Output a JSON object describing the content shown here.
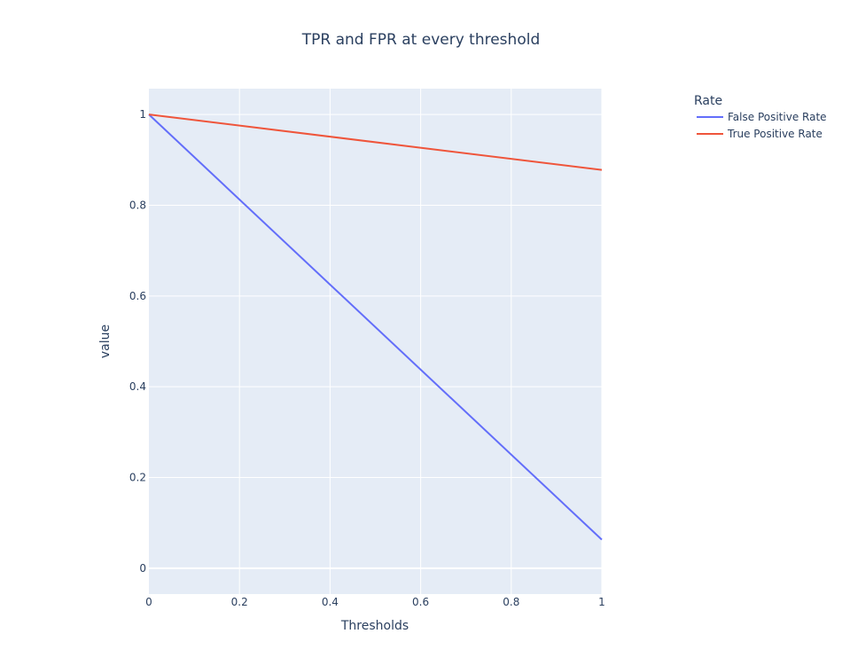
{
  "chart_data": {
    "type": "line",
    "title": "TPR and FPR at every threshold",
    "xlabel": "Thresholds",
    "ylabel": "value",
    "xlim": [
      0,
      1
    ],
    "ylim": [
      -0.057,
      1.057
    ],
    "x_ticks": [
      "0",
      "0.2",
      "0.4",
      "0.6",
      "0.8",
      "1"
    ],
    "y_ticks": [
      "0",
      "0.2",
      "0.4",
      "0.6",
      "0.8",
      "1"
    ],
    "legend_title": "Rate",
    "legend_position": "top-right (outside plot)",
    "grid": true,
    "series": [
      {
        "name": "False Positive Rate",
        "color": "#636efa",
        "x": [
          0,
          1
        ],
        "y": [
          1,
          0.063
        ]
      },
      {
        "name": "True Positive Rate",
        "color": "#ef553b",
        "x": [
          0,
          1
        ],
        "y": [
          1,
          0.878
        ]
      }
    ]
  },
  "colors": {
    "plot_background": "#e5ecf6",
    "grid": "#ffffff",
    "text": "#2a3f5f"
  }
}
